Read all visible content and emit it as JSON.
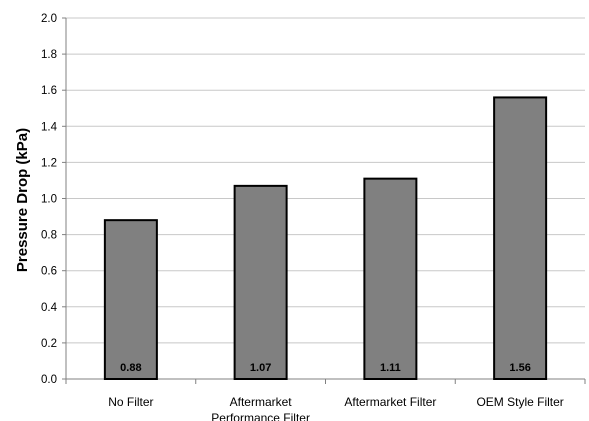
{
  "chart_data": {
    "type": "bar",
    "categories": [
      [
        "No Filter"
      ],
      [
        "Aftermarket",
        "Performance Filter"
      ],
      [
        "Aftermarket Filter"
      ],
      [
        "OEM Style Filter"
      ]
    ],
    "values": [
      0.88,
      1.07,
      1.11,
      1.56
    ],
    "data_labels": [
      "0.88",
      "1.07",
      "1.11",
      "1.56"
    ],
    "title": "",
    "xlabel": "",
    "ylabel": "Pressure Drop (kPa)",
    "ylim": [
      0,
      2.0
    ],
    "yticks": [
      0.0,
      0.2,
      0.4,
      0.6,
      0.8,
      1.0,
      1.2,
      1.4,
      1.6,
      1.8,
      2.0
    ],
    "ytick_labels": [
      "0.0",
      "0.2",
      "0.4",
      "0.6",
      "0.8",
      "1.0",
      "1.2",
      "1.4",
      "1.6",
      "1.8",
      "2.0"
    ],
    "grid": "horizontal",
    "legend": "none",
    "colors": {
      "bar_fill": "#808080",
      "bar_stroke": "#000000",
      "grid": "#c8c8c8",
      "axis": "#808080"
    }
  }
}
